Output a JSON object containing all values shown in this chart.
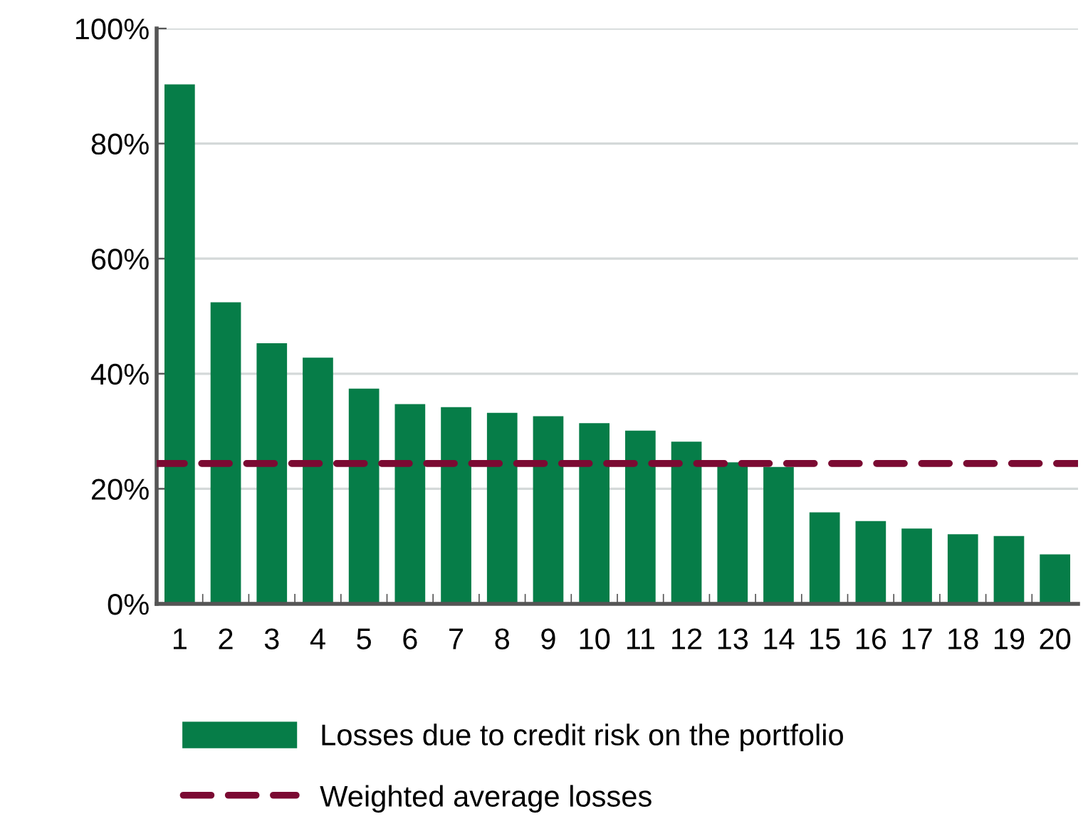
{
  "chart_data": {
    "type": "bar",
    "categories": [
      "1",
      "2",
      "3",
      "4",
      "5",
      "6",
      "7",
      "8",
      "9",
      "10",
      "11",
      "12",
      "13",
      "14",
      "15",
      "16",
      "17",
      "18",
      "19",
      "20"
    ],
    "series": [
      {
        "name": "Losses due to credit risk on the portfolio",
        "color": "#067d48",
        "values": [
          90.3,
          52.4,
          45.3,
          42.8,
          37.4,
          34.7,
          34.2,
          33.2,
          32.6,
          31.4,
          30.1,
          28.2,
          24.6,
          23.8,
          15.9,
          14.4,
          13.1,
          12.1,
          11.8,
          8.6
        ]
      }
    ],
    "ref_lines": [
      {
        "axis": "y",
        "value": 24.4,
        "label": "Weighted average losses",
        "color": "#7b0a32",
        "line_style": "dashed"
      }
    ],
    "ylim": [
      0,
      100
    ],
    "yticks": [
      {
        "value": 0,
        "label": "0%"
      },
      {
        "value": 20,
        "label": "20%"
      },
      {
        "value": 40,
        "label": "40%"
      },
      {
        "value": 60,
        "label": "60%"
      },
      {
        "value": 80,
        "label": "80%"
      },
      {
        "value": 100,
        "label": "100%"
      }
    ],
    "grid": "y",
    "legend": "bottom"
  }
}
